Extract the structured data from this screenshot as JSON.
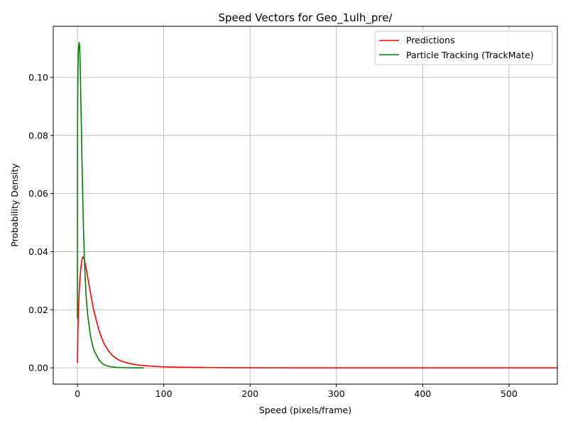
{
  "chart_data": {
    "type": "line",
    "title": "Speed Vectors for Geo_1ulh_pre/",
    "xlabel": "Speed (pixels/frame)",
    "ylabel": "Probability Density",
    "xlim": [
      -28,
      556
    ],
    "ylim": [
      -0.0056,
      0.1176
    ],
    "xticks": [
      0,
      100,
      200,
      300,
      400,
      500
    ],
    "xtick_labels": [
      "0",
      "100",
      "200",
      "300",
      "400",
      "500"
    ],
    "yticks": [
      0.0,
      0.02,
      0.04,
      0.06,
      0.08,
      0.1
    ],
    "ytick_labels": [
      "0.00",
      "0.02",
      "0.04",
      "0.06",
      "0.08",
      "0.10"
    ],
    "grid": true,
    "legend_position": "top-right",
    "series": [
      {
        "name": "Predictions",
        "color": "#ff0000",
        "x": [
          0,
          0.5,
          1,
          2,
          3,
          4,
          5,
          6,
          7,
          8,
          10,
          12,
          15,
          18,
          20,
          25,
          30,
          35,
          40,
          45,
          50,
          60,
          70,
          80,
          90,
          100,
          120,
          140,
          160,
          180,
          200,
          250,
          300,
          350,
          400,
          450,
          500,
          556
        ],
        "y": [
          0.0017,
          0.012,
          0.018,
          0.026,
          0.031,
          0.0345,
          0.0368,
          0.0382,
          0.038,
          0.0372,
          0.0345,
          0.031,
          0.026,
          0.021,
          0.0185,
          0.0128,
          0.0088,
          0.0062,
          0.0044,
          0.0032,
          0.0024,
          0.0015,
          0.001,
          0.0007,
          0.0005,
          0.00035,
          0.0002,
          0.00012,
          8e-05,
          5e-05,
          3e-05,
          1e-05,
          0,
          0,
          0,
          0,
          0,
          0
        ]
      },
      {
        "name": "Particle Tracking (TrackMate)",
        "color": "#008000",
        "x": [
          0,
          0.05,
          0.2,
          0.5,
          1,
          1.5,
          2,
          2.5,
          3,
          3.5,
          4,
          5,
          6,
          7,
          8,
          10,
          12,
          15,
          18,
          20,
          25,
          30,
          35,
          40,
          50,
          60,
          70,
          77
        ],
        "y": [
          0.017,
          0.06,
          0.085,
          0.1,
          0.108,
          0.111,
          0.112,
          0.111,
          0.107,
          0.1,
          0.092,
          0.076,
          0.061,
          0.048,
          0.038,
          0.025,
          0.018,
          0.0112,
          0.0072,
          0.0055,
          0.0027,
          0.0012,
          0.0006,
          0.0003,
          8e-05,
          2e-05,
          1e-05,
          0
        ]
      }
    ]
  }
}
